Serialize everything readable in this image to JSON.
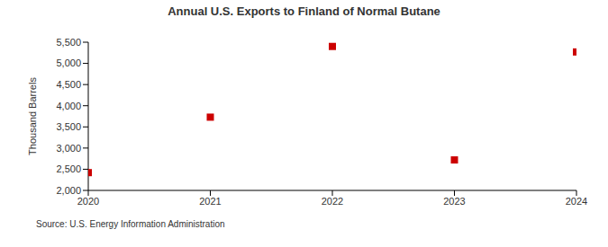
{
  "chart_data": {
    "type": "scatter",
    "title": "Annual U.S. Exports to Finland of Normal Butane",
    "y_label": "Thousand Barrels",
    "source": "Source: U.S. Energy Information Administration",
    "x": [
      2020,
      2021,
      2022,
      2023,
      2024
    ],
    "values": [
      2420,
      3730,
      5400,
      2720,
      5270
    ],
    "color": "#cc0000",
    "marker": "square",
    "xlim": [
      2020,
      2024
    ],
    "xticks": [
      2020,
      2021,
      2022,
      2023,
      2024
    ],
    "ylim": [
      2000,
      5500
    ],
    "yticks": [
      {
        "value": 2000,
        "label": "2,000"
      },
      {
        "value": 2500,
        "label": "2,500"
      },
      {
        "value": 3000,
        "label": "3,000"
      },
      {
        "value": 3500,
        "label": "3,500"
      },
      {
        "value": 4000,
        "label": "4,000"
      },
      {
        "value": 4500,
        "label": "4,500"
      },
      {
        "value": 5000,
        "label": "5,000"
      },
      {
        "value": 5500,
        "label": "5,500"
      }
    ],
    "grid": false
  }
}
